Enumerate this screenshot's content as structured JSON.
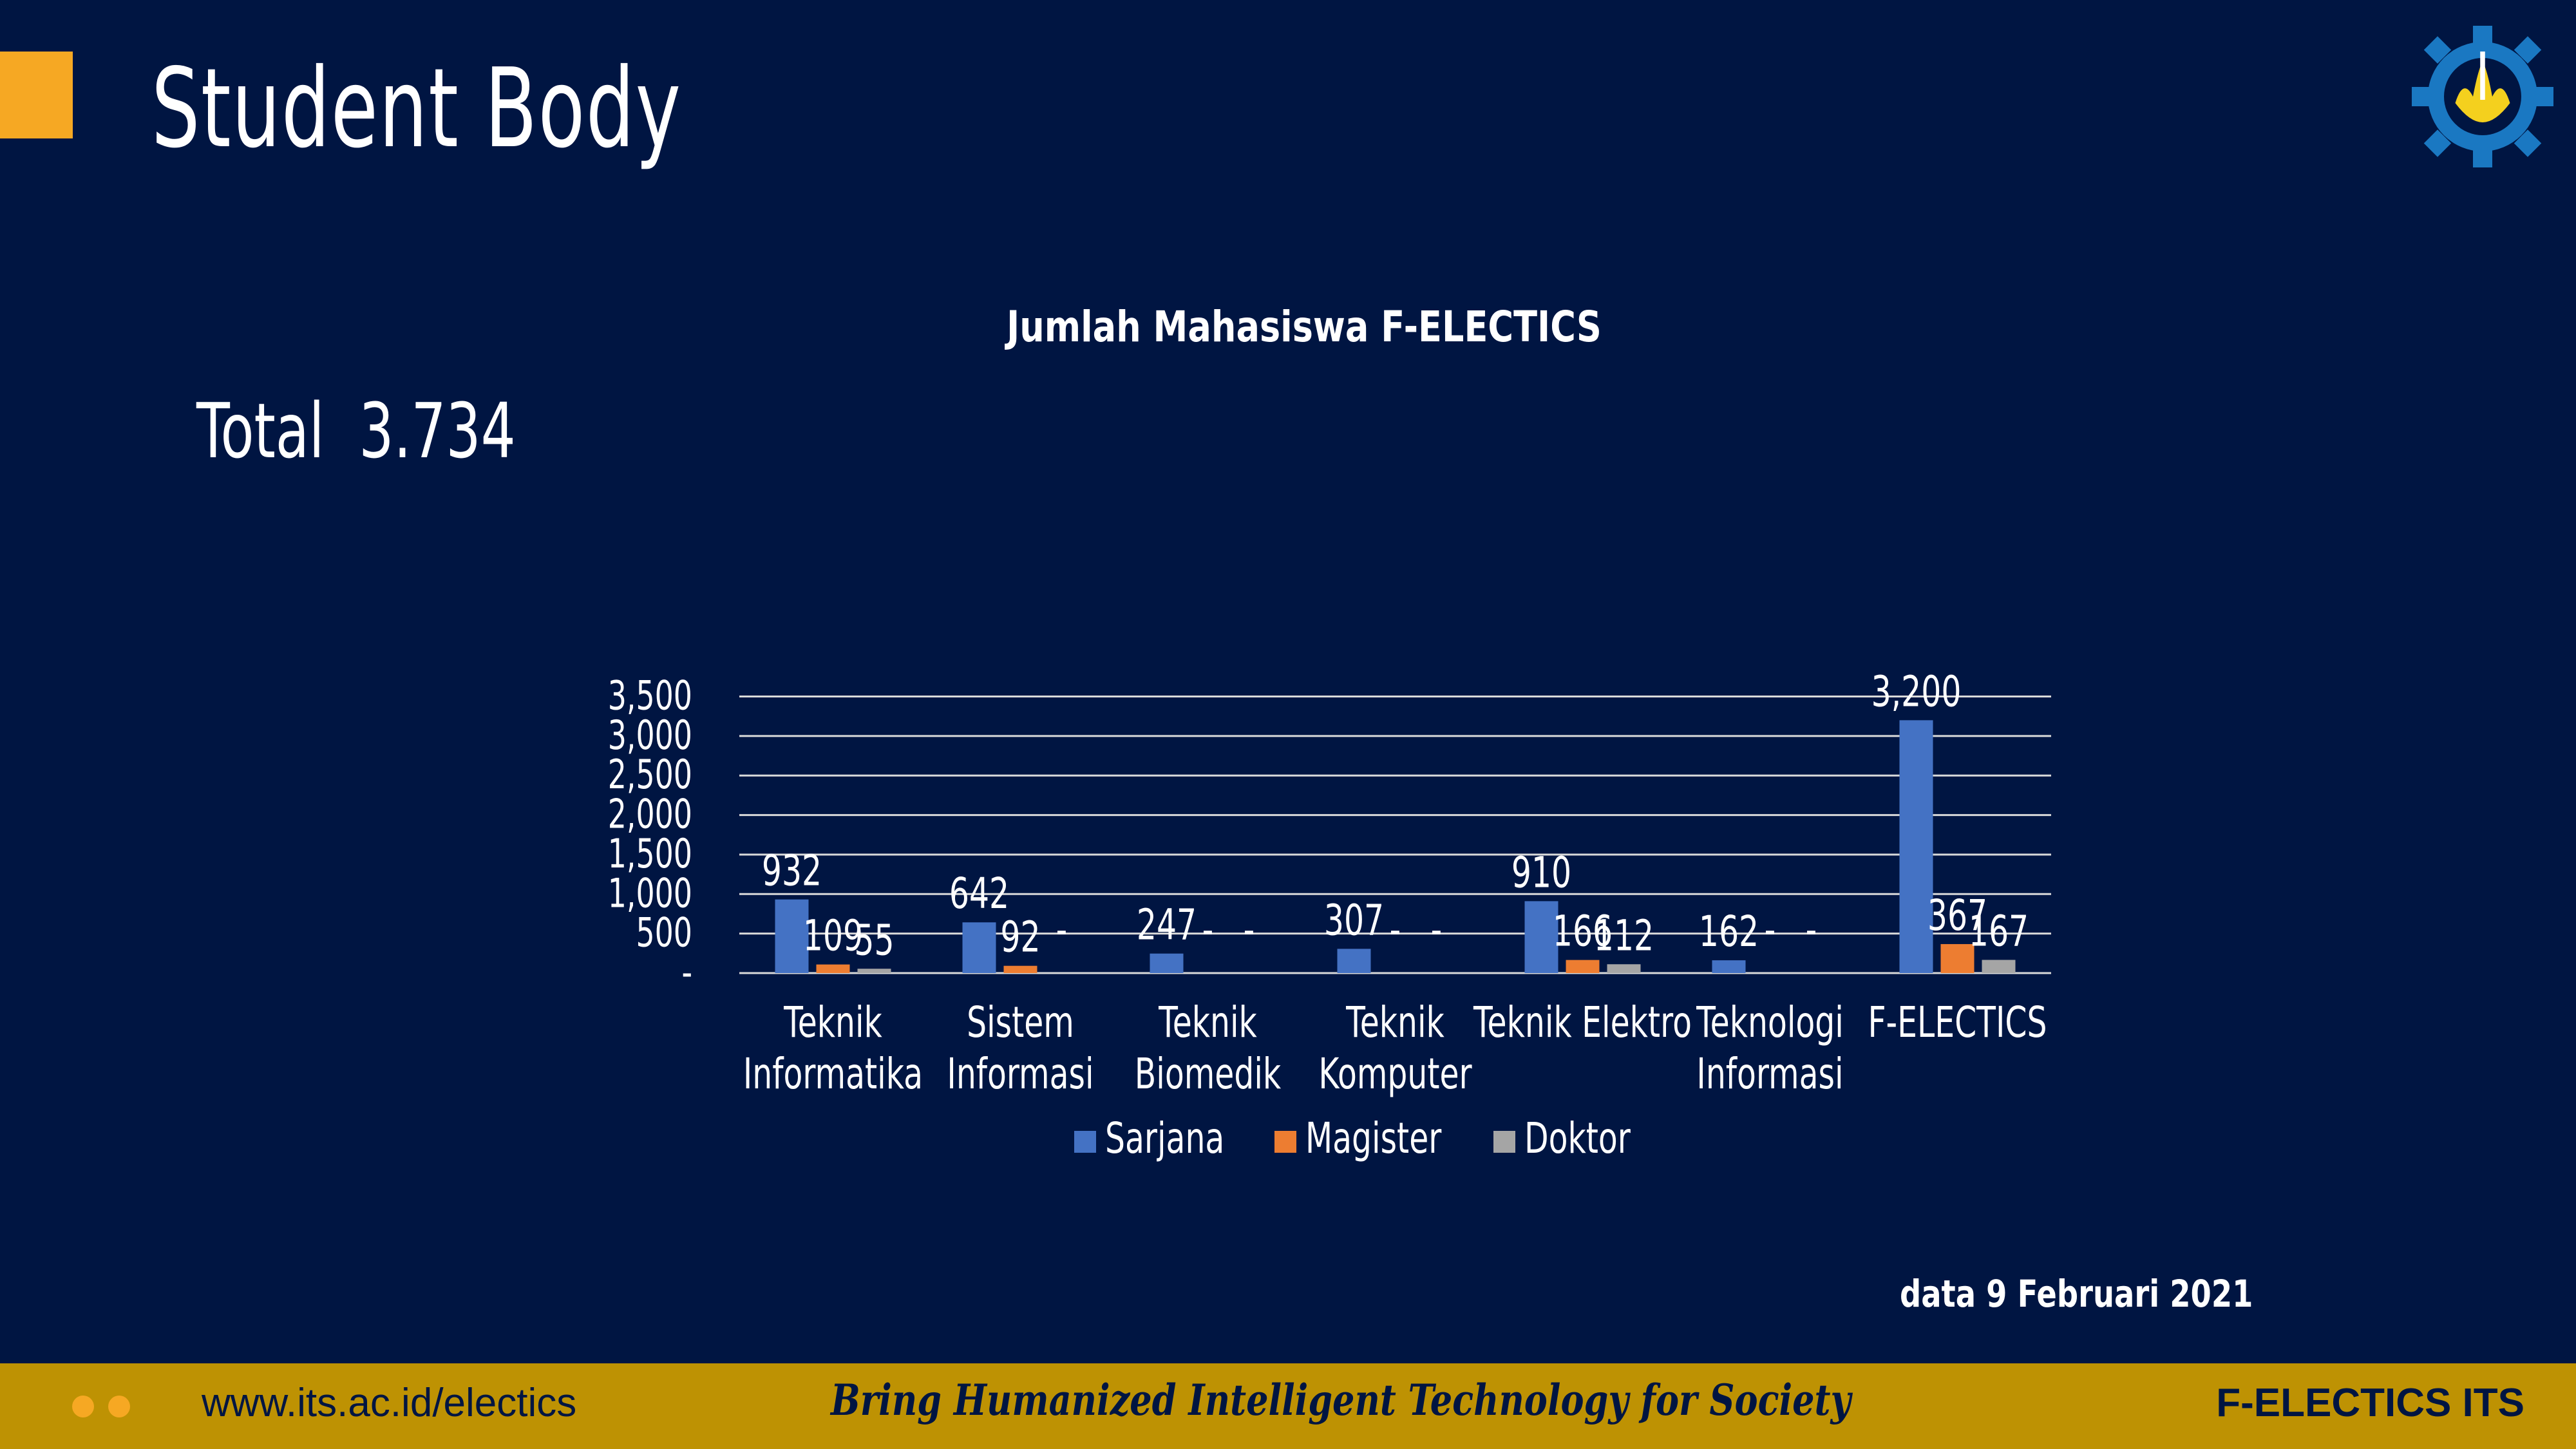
{
  "slide": {
    "title": "Student Body",
    "total_text": "Total  3.734",
    "date_note": "data 9 Februari 2021"
  },
  "footer": {
    "url": "www.its.ac.id/electics",
    "slogan": "Bring Humanized Intelligent Technology for Society",
    "brand": "F-ELECTICS ITS"
  },
  "colors": {
    "background": "#001542",
    "accent": "#F6A823",
    "footer_bar": "#BE9203",
    "sarjana": "#4472C4",
    "magister": "#ED7D31",
    "doktor": "#A5A5A5"
  },
  "icons": [
    "its-gear-logo-icon"
  ],
  "chart_data": {
    "type": "bar",
    "title": "Jumlah Mahasiswa F-ELECTICS",
    "categories": [
      [
        "Teknik",
        "Informatika"
      ],
      [
        "Sistem",
        "Informasi"
      ],
      [
        "Teknik",
        "Biomedik"
      ],
      [
        "Teknik",
        "Komputer"
      ],
      [
        "Teknik Elektro"
      ],
      [
        "Teknologi",
        "Informasi"
      ],
      [
        "F-ELECTICS"
      ]
    ],
    "series": [
      {
        "name": "Sarjana",
        "values": [
          932,
          642,
          247,
          307,
          910,
          162,
          3200
        ],
        "labels": [
          "932",
          "642",
          "247",
          "307",
          "910",
          "162",
          "3,200"
        ]
      },
      {
        "name": "Magister",
        "values": [
          109,
          92,
          0,
          0,
          166,
          0,
          367
        ],
        "labels": [
          "109",
          "92",
          "-",
          "-",
          "166",
          "-",
          "367"
        ]
      },
      {
        "name": "Doktor",
        "values": [
          55,
          0,
          0,
          0,
          112,
          0,
          167
        ],
        "labels": [
          "55",
          "-",
          "-",
          "-",
          "112",
          "-",
          "167"
        ]
      }
    ],
    "y_ticks": [
      "-",
      "500",
      "1,000",
      "1,500",
      "2,000",
      "2,500",
      "3,000",
      "3,500"
    ],
    "ylim": [
      0,
      3500
    ],
    "grid": true,
    "legend": "bottom"
  }
}
